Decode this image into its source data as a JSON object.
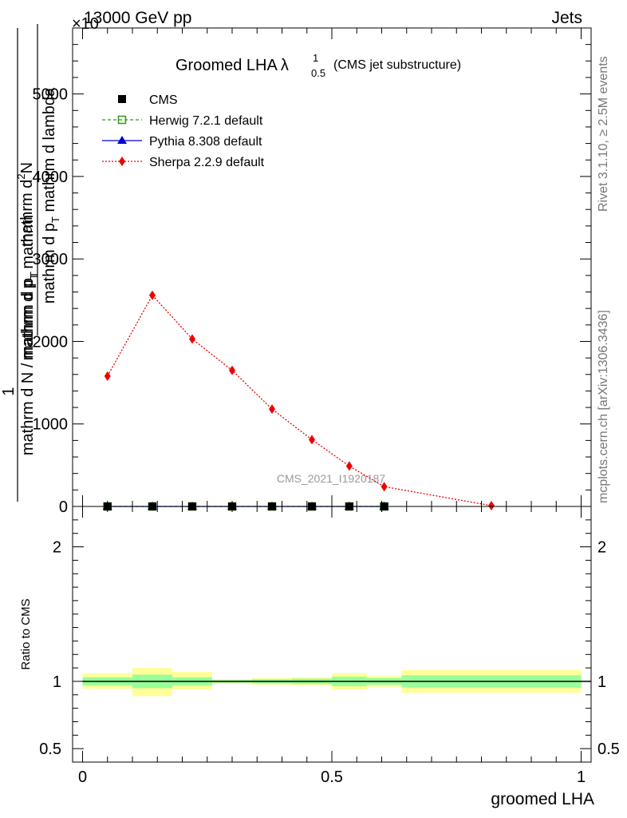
{
  "header": {
    "energy": "13000 GeV pp",
    "process": "Jets",
    "multiplier": "×10"
  },
  "side_text": {
    "rivet": "Rivet 3.1.10, ≥ 2.5M events",
    "mcplots": "mcplots.cern.ch [arXiv:1306.3436]"
  },
  "watermark": "CMS_2021_I1920187",
  "colors": {
    "cms": "#000000",
    "herwig": "#2e9a0e",
    "pythia": "#0000cc",
    "sherpa": "#ee0000",
    "band_outer": "#ffff99",
    "band_inner": "#99ff99"
  },
  "chart_data": [
    {
      "type": "line",
      "title": "Groomed LHA",
      "title_symbol": "λ",
      "title_sup": "1",
      "title_sub": "0.5",
      "title_note": "(CMS jet substructure)",
      "ylabel_top_num": "mathrm d",
      "ylabel_top_sup": "2",
      "ylabel_top_rest": "N",
      "ylabel_top_den": "mathrm d p",
      "ylabel_top_den_sub": "T",
      "ylabel_top_den_rest": " mathrm d lambda",
      "ylabel_prefix_num": "1",
      "ylabel_prefix_den": "mathrm d N / mathrm d p",
      "ylabel_prefix_den_sub": "T",
      "ylabel_outer_den": "mathrm d p",
      "ylabel_outer_den_sub": "T",
      "ylabel_outer_den_rest": " mathrm",
      "ylim": [
        0,
        5800
      ],
      "yticks": [
        0,
        1000,
        2000,
        3000,
        4000,
        5000
      ],
      "ytick_labels": [
        "0",
        "1000",
        "2000",
        "3000",
        "4000",
        "5000"
      ],
      "xlim": [
        -0.02,
        1.02
      ],
      "legend_position": "top-left",
      "series": [
        {
          "name": "CMS",
          "x": [
            0.05,
            0.14,
            0.22,
            0.3,
            0.38,
            0.46,
            0.535,
            0.605
          ],
          "y": [
            0,
            0,
            0,
            0,
            0,
            0,
            0,
            0
          ]
        },
        {
          "name": "Herwig 7.2.1 default",
          "x": [
            0.05,
            0.14,
            0.22,
            0.3,
            0.38,
            0.46,
            0.535,
            0.605
          ],
          "y": [
            0,
            0,
            0,
            0,
            0,
            0,
            0,
            0
          ]
        },
        {
          "name": "Pythia 8.308 default",
          "x": [
            0.05,
            0.14,
            0.22,
            0.3,
            0.38,
            0.46,
            0.535,
            0.605
          ],
          "y": [
            0,
            0,
            0,
            0,
            0,
            0,
            0,
            0
          ]
        },
        {
          "name": "Sherpa 2.2.9 default",
          "x": [
            0.05,
            0.14,
            0.22,
            0.3,
            0.38,
            0.46,
            0.535,
            0.605,
            0.82
          ],
          "y": [
            1580,
            2560,
            2030,
            1650,
            1180,
            810,
            490,
            240,
            10
          ]
        }
      ]
    },
    {
      "type": "area",
      "ylabel": "Ratio to CMS",
      "xlabel": "groomed LHA",
      "ylim": [
        0.4,
        2.3
      ],
      "xlim": [
        -0.02,
        1.02
      ],
      "yticks": [
        0.5,
        1,
        2
      ],
      "ytick_labels": [
        "0.5",
        "1",
        "2"
      ],
      "xticks": [
        0,
        0.5,
        1
      ],
      "xtick_labels": [
        "0",
        "0.5",
        "1"
      ],
      "bins": [
        {
          "x0": 0.0,
          "x1": 0.1,
          "outer": [
            0.945,
            1.06
          ],
          "inner": [
            0.97,
            1.03
          ]
        },
        {
          "x0": 0.1,
          "x1": 0.18,
          "outer": [
            0.89,
            1.1
          ],
          "inner": [
            0.95,
            1.05
          ]
        },
        {
          "x0": 0.18,
          "x1": 0.26,
          "outer": [
            0.94,
            1.07
          ],
          "inner": [
            0.97,
            1.03
          ]
        },
        {
          "x0": 0.26,
          "x1": 0.34,
          "outer": [
            0.985,
            1.015
          ],
          "inner": [
            0.99,
            1.01
          ]
        },
        {
          "x0": 0.34,
          "x1": 0.42,
          "outer": [
            0.975,
            1.025
          ],
          "inner": [
            0.985,
            1.015
          ]
        },
        {
          "x0": 0.42,
          "x1": 0.5,
          "outer": [
            0.97,
            1.03
          ],
          "inner": [
            0.98,
            1.02
          ]
        },
        {
          "x0": 0.5,
          "x1": 0.57,
          "outer": [
            0.94,
            1.06
          ],
          "inner": [
            0.965,
            1.035
          ]
        },
        {
          "x0": 0.57,
          "x1": 0.64,
          "outer": [
            0.96,
            1.04
          ],
          "inner": [
            0.975,
            1.025
          ]
        },
        {
          "x0": 0.64,
          "x1": 1.0,
          "outer": [
            0.915,
            1.085
          ],
          "inner": [
            0.955,
            1.045
          ]
        }
      ],
      "reference": 1
    }
  ]
}
